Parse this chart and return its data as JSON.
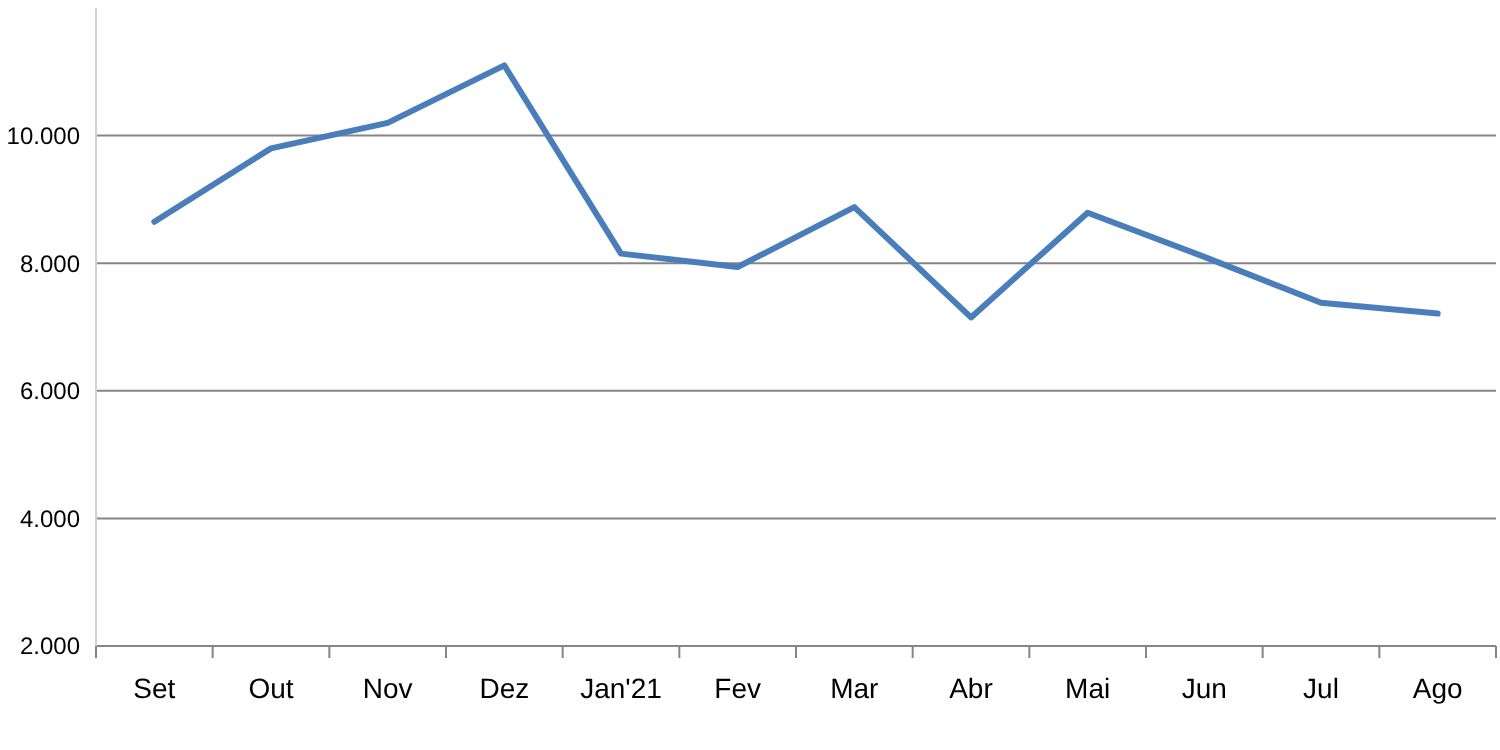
{
  "chart_data": {
    "type": "line",
    "categories": [
      "Set",
      "Out",
      "Nov",
      "Dez",
      "Jan'21",
      "Fev",
      "Mar",
      "Abr",
      "Mai",
      "Jun",
      "Jul",
      "Ago"
    ],
    "series": [
      {
        "color": "#4a7ebb",
        "values": [
          8650,
          9800,
          10200,
          11100,
          8150,
          7940,
          8880,
          7150,
          8790,
          8100,
          7380,
          7210
        ]
      }
    ],
    "ylim": [
      2000,
      12000
    ],
    "yticks": [
      {
        "value": 2000,
        "label": "2.000"
      },
      {
        "value": 4000,
        "label": "4.000"
      },
      {
        "value": 6000,
        "label": "6.000"
      },
      {
        "value": 8000,
        "label": "8.000"
      },
      {
        "value": 10000,
        "label": "10.000"
      }
    ],
    "grid": "y",
    "marker": "none",
    "line_style": "solid"
  }
}
